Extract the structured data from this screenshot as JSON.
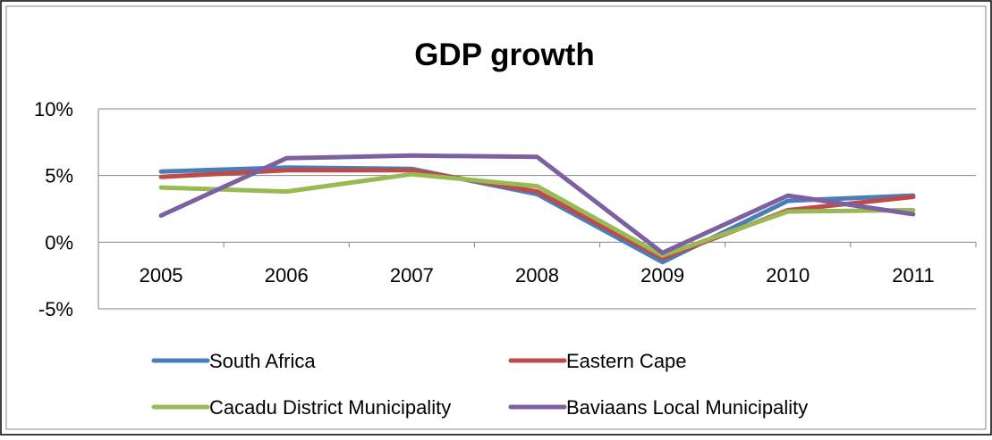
{
  "chart_data": {
    "type": "line",
    "title": "GDP growth",
    "xlabel": "",
    "ylabel": "",
    "categories": [
      "2005",
      "2006",
      "2007",
      "2008",
      "2009",
      "2010",
      "2011"
    ],
    "yticks": [
      10,
      5,
      0,
      -5
    ],
    "ytick_labels": [
      "10%",
      "5%",
      "0%",
      "-5%"
    ],
    "ylim": [
      -5,
      10
    ],
    "grid": true,
    "legend_position": "bottom",
    "series": [
      {
        "name": "South Africa",
        "color": "#4A7EBB",
        "values": [
          5.3,
          5.6,
          5.5,
          3.6,
          -1.5,
          3.1,
          3.5
        ]
      },
      {
        "name": "Eastern Cape",
        "color": "#BE4B48",
        "values": [
          4.9,
          5.4,
          5.4,
          3.8,
          -1.2,
          2.4,
          3.4
        ]
      },
      {
        "name": "Cacadu District Municipality",
        "color": "#98B954",
        "values": [
          4.1,
          3.8,
          5.1,
          4.2,
          -1.0,
          2.3,
          2.4
        ]
      },
      {
        "name": "Baviaans Local Municipality",
        "color": "#7D60A0",
        "values": [
          2.0,
          6.3,
          6.5,
          6.4,
          -0.8,
          3.5,
          2.1
        ]
      }
    ]
  }
}
